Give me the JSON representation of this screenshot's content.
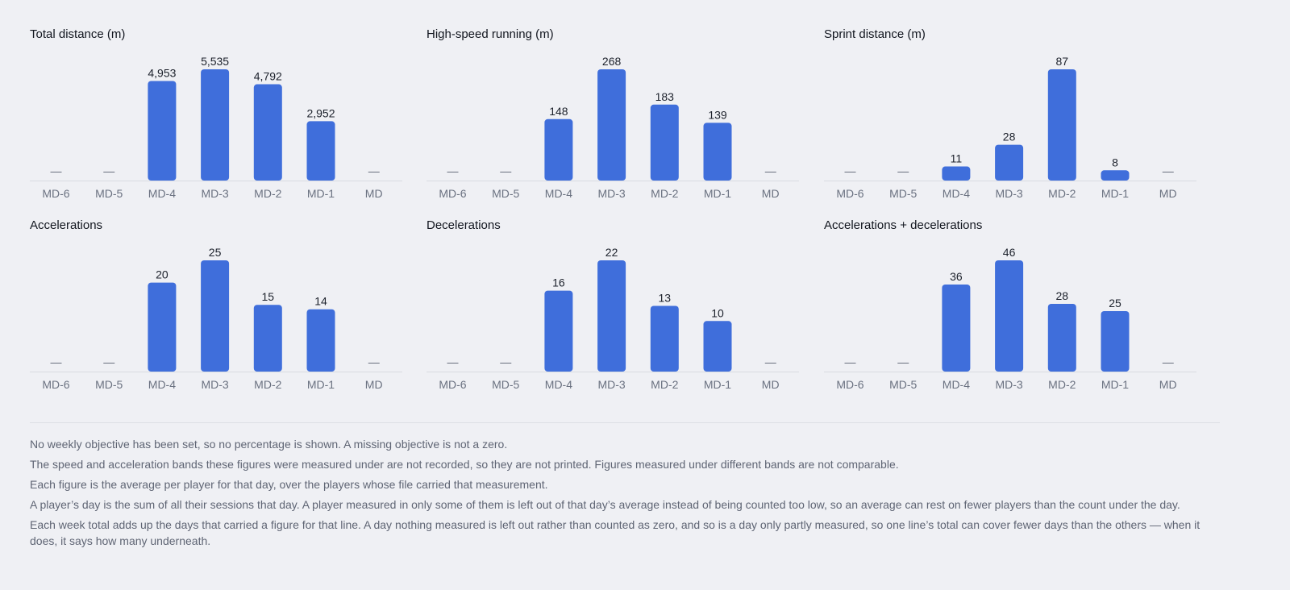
{
  "colors": {
    "bar": "#3f6edb",
    "axis": "#d9dbe1"
  },
  "categories": [
    "MD-6",
    "MD-5",
    "MD-4",
    "MD-3",
    "MD-2",
    "MD-1",
    "MD"
  ],
  "missing_marker": "—",
  "chart_data": [
    {
      "type": "bar",
      "title": "Total distance (m)",
      "categories": [
        "MD-6",
        "MD-5",
        "MD-4",
        "MD-3",
        "MD-2",
        "MD-1",
        "MD"
      ],
      "values": [
        null,
        null,
        4953,
        5535,
        4792,
        2952,
        null
      ],
      "labels": [
        "—",
        "—",
        "4,953",
        "5,535",
        "4,792",
        "2,952",
        "—"
      ]
    },
    {
      "type": "bar",
      "title": "High-speed running (m)",
      "categories": [
        "MD-6",
        "MD-5",
        "MD-4",
        "MD-3",
        "MD-2",
        "MD-1",
        "MD"
      ],
      "values": [
        null,
        null,
        148,
        268,
        183,
        139,
        null
      ],
      "labels": [
        "—",
        "—",
        "148",
        "268",
        "183",
        "139",
        "—"
      ]
    },
    {
      "type": "bar",
      "title": "Sprint distance (m)",
      "categories": [
        "MD-6",
        "MD-5",
        "MD-4",
        "MD-3",
        "MD-2",
        "MD-1",
        "MD"
      ],
      "values": [
        null,
        null,
        11,
        28,
        87,
        8,
        null
      ],
      "labels": [
        "—",
        "—",
        "11",
        "28",
        "87",
        "8",
        "—"
      ]
    },
    {
      "type": "bar",
      "title": "Accelerations",
      "categories": [
        "MD-6",
        "MD-5",
        "MD-4",
        "MD-3",
        "MD-2",
        "MD-1",
        "MD"
      ],
      "values": [
        null,
        null,
        20,
        25,
        15,
        14,
        null
      ],
      "labels": [
        "—",
        "—",
        "20",
        "25",
        "15",
        "14",
        "—"
      ]
    },
    {
      "type": "bar",
      "title": "Decelerations",
      "categories": [
        "MD-6",
        "MD-5",
        "MD-4",
        "MD-3",
        "MD-2",
        "MD-1",
        "MD"
      ],
      "values": [
        null,
        null,
        16,
        22,
        13,
        10,
        null
      ],
      "labels": [
        "—",
        "—",
        "16",
        "22",
        "13",
        "10",
        "—"
      ]
    },
    {
      "type": "bar",
      "title": "Accelerations + decelerations",
      "categories": [
        "MD-6",
        "MD-5",
        "MD-4",
        "MD-3",
        "MD-2",
        "MD-1",
        "MD"
      ],
      "values": [
        null,
        null,
        36,
        46,
        28,
        25,
        null
      ],
      "labels": [
        "—",
        "—",
        "36",
        "46",
        "28",
        "25",
        "—"
      ]
    }
  ],
  "notes": [
    "No weekly objective has been set, so no percentage is shown. A missing objective is not a zero.",
    "The speed and acceleration bands these figures were measured under are not recorded, so they are not printed. Figures measured under different bands are not comparable.",
    "Each figure is the average per player for that day, over the players whose file carried that measurement.",
    "A player’s day is the sum of all their sessions that day. A player measured in only some of them is left out of that day’s average instead of being counted too low, so an average can rest on fewer players than the count under the day.",
    "Each week total adds up the days that carried a figure for that line. A day nothing measured is left out rather than counted as zero, and so is a day only partly measured, so one line’s total can cover fewer days than the others — when it does, it says how many underneath."
  ]
}
